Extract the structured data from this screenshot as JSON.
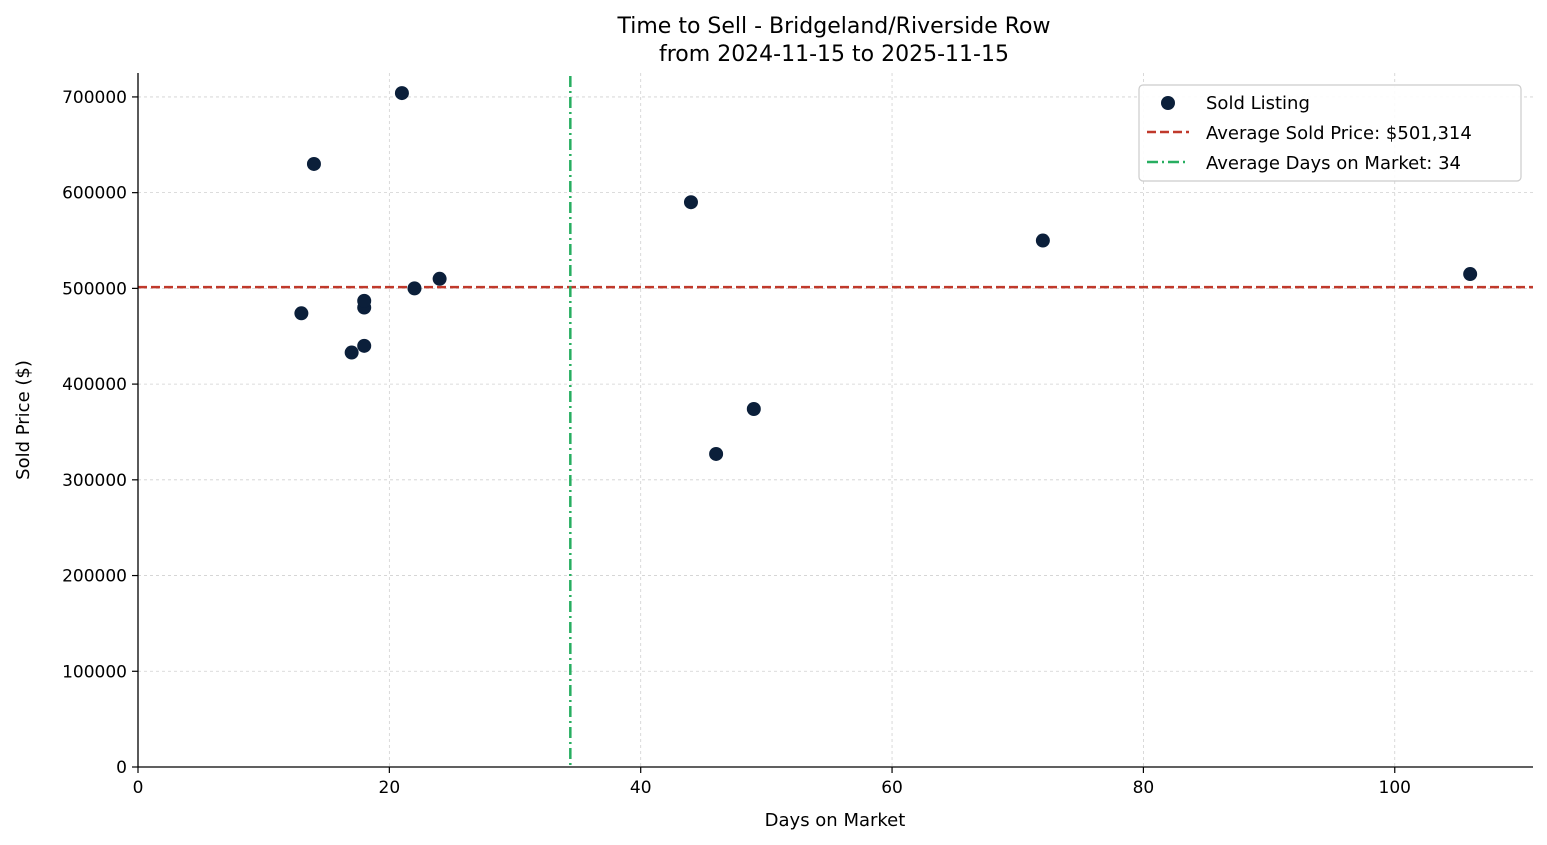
{
  "chart_data": {
    "type": "scatter",
    "title": "Time to Sell - Bridgeland/Riverside Row",
    "subtitle": "from 2024-11-15 to 2025-11-15",
    "xlabel": "Days on Market",
    "ylabel": "Sold Price ($)",
    "xlim": [
      0,
      111
    ],
    "ylim": [
      0,
      725000
    ],
    "xticks": [
      0,
      20,
      40,
      60,
      80,
      100
    ],
    "xtick_labels": [
      "0",
      "20",
      "40",
      "60",
      "80",
      "100"
    ],
    "yticks": [
      0,
      100000,
      200000,
      300000,
      400000,
      500000,
      600000,
      700000
    ],
    "ytick_labels": [
      "0",
      "100000",
      "200000",
      "300000",
      "400000",
      "500000",
      "600000",
      "700000"
    ],
    "grid": true,
    "legend_position": "top-right",
    "series": [
      {
        "name": "Sold Listing",
        "color": "#0b1f3a",
        "points": [
          {
            "x": 13,
            "y": 474000
          },
          {
            "x": 14,
            "y": 630000
          },
          {
            "x": 17,
            "y": 433000
          },
          {
            "x": 18,
            "y": 440000
          },
          {
            "x": 18,
            "y": 480000
          },
          {
            "x": 18,
            "y": 487000
          },
          {
            "x": 21,
            "y": 704000
          },
          {
            "x": 22,
            "y": 500000
          },
          {
            "x": 24,
            "y": 510000
          },
          {
            "x": 44,
            "y": 590000
          },
          {
            "x": 46,
            "y": 327000
          },
          {
            "x": 49,
            "y": 374000
          },
          {
            "x": 72,
            "y": 550000
          },
          {
            "x": 106,
            "y": 515000
          }
        ]
      }
    ],
    "reference_lines": [
      {
        "orientation": "horizontal",
        "value": 501314,
        "label": "Average Sold Price: $501,314",
        "color": "#c0392b",
        "style": "dashed"
      },
      {
        "orientation": "vertical",
        "value": 34.4,
        "label": "Average Days on Market: 34",
        "color": "#27ae60",
        "style": "dashdot"
      }
    ]
  }
}
